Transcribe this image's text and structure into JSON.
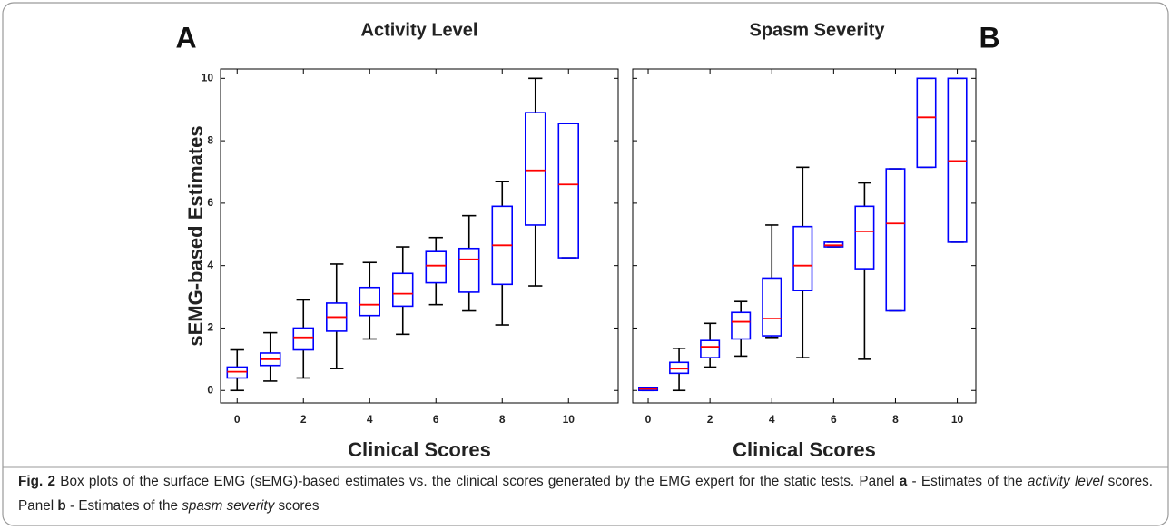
{
  "chart_data": [
    {
      "type": "box",
      "panel_label": "A",
      "title": "Activity Level",
      "ylabel": "sEMG-based Estimates",
      "xlabel": "Clinical Scores",
      "x": [
        0,
        1,
        2,
        3,
        4,
        5,
        6,
        7,
        8,
        9,
        10
      ],
      "boxes": [
        {
          "low": 0,
          "q1": 0.4,
          "median": 0.6,
          "q3": 0.75,
          "high": 1.3
        },
        {
          "low": 0.3,
          "q1": 0.8,
          "median": 1.0,
          "q3": 1.2,
          "high": 1.85
        },
        {
          "low": 0.4,
          "q1": 1.3,
          "median": 1.7,
          "q3": 2.0,
          "high": 2.9
        },
        {
          "low": 0.7,
          "q1": 1.9,
          "median": 2.35,
          "q3": 2.8,
          "high": 4.05
        },
        {
          "low": 1.65,
          "q1": 2.4,
          "median": 2.75,
          "q3": 3.3,
          "high": 4.1
        },
        {
          "low": 1.8,
          "q1": 2.7,
          "median": 3.1,
          "q3": 3.75,
          "high": 4.6
        },
        {
          "low": 2.75,
          "q1": 3.45,
          "median": 4.0,
          "q3": 4.45,
          "high": 4.9
        },
        {
          "low": 2.55,
          "q1": 3.15,
          "median": 4.2,
          "q3": 4.55,
          "high": 5.6
        },
        {
          "low": 2.1,
          "q1": 3.4,
          "median": 4.65,
          "q3": 5.9,
          "high": 6.7
        },
        {
          "low": 3.35,
          "q1": 5.3,
          "median": 7.05,
          "q3": 8.9,
          "high": 10.0
        },
        {
          "low": 4.25,
          "q1": 4.25,
          "median": 6.6,
          "q3": 8.55,
          "high": 8.55
        }
      ],
      "xlim": [
        -0.5,
        11.5
      ],
      "ylim": [
        -0.4,
        10.3
      ],
      "xticks": [
        0,
        2,
        4,
        6,
        8,
        10
      ],
      "yticks": [
        0,
        2,
        4,
        6,
        8,
        10
      ],
      "show_ytick_labels": true,
      "box_color": "#0000ff",
      "median_color": "#ff0000",
      "whisker_color": "#000000"
    },
    {
      "type": "box",
      "panel_label": "B",
      "title": "Spasm Severity",
      "xlabel": "Clinical Scores",
      "x": [
        0,
        1,
        2,
        3,
        4,
        5,
        6,
        7,
        8,
        9,
        10
      ],
      "boxes": [
        {
          "low": 0,
          "q1": 0,
          "median": 0.05,
          "q3": 0.1,
          "high": 0.1
        },
        {
          "low": 0,
          "q1": 0.55,
          "median": 0.7,
          "q3": 0.9,
          "high": 1.35
        },
        {
          "low": 0.75,
          "q1": 1.05,
          "median": 1.4,
          "q3": 1.6,
          "high": 2.15
        },
        {
          "low": 1.1,
          "q1": 1.65,
          "median": 2.2,
          "q3": 2.5,
          "high": 2.85
        },
        {
          "low": 1.7,
          "q1": 1.75,
          "median": 2.3,
          "q3": 3.6,
          "high": 5.3
        },
        {
          "low": 1.05,
          "q1": 3.2,
          "median": 4.0,
          "q3": 5.25,
          "high": 7.15
        },
        {
          "low": 4.6,
          "q1": 4.6,
          "median": 4.65,
          "q3": 4.75,
          "high": 4.75
        },
        {
          "low": 1.0,
          "q1": 3.9,
          "median": 5.1,
          "q3": 5.9,
          "high": 6.65
        },
        {
          "low": 2.55,
          "q1": 2.55,
          "median": 5.35,
          "q3": 7.1,
          "high": 7.1
        },
        {
          "low": 7.15,
          "q1": 7.15,
          "median": 8.75,
          "q3": 10.0,
          "high": 10.0
        },
        {
          "low": 4.75,
          "q1": 4.75,
          "median": 7.35,
          "q3": 10.0,
          "high": 10.0
        }
      ],
      "xlim": [
        -0.5,
        10.6
      ],
      "ylim": [
        -0.4,
        10.3
      ],
      "xticks": [
        0,
        2,
        4,
        6,
        8,
        10
      ],
      "yticks": [
        0,
        2,
        4,
        6,
        8,
        10
      ],
      "show_ytick_labels": false,
      "box_color": "#0000ff",
      "median_color": "#ff0000",
      "whisker_color": "#000000"
    }
  ],
  "caption": [
    {
      "text": "Fig. 2",
      "style": "bold"
    },
    {
      "text": " Box plots of the surface EMG (sEMG)-based estimates vs. the clinical scores generated by the EMG expert for the static tests. Panel ",
      "style": "normal"
    },
    {
      "text": "a",
      "style": "bold"
    },
    {
      "text": " - Estimates of the ",
      "style": "normal"
    },
    {
      "text": "activity level",
      "style": "italic"
    },
    {
      "text": " scores. Panel ",
      "style": "normal"
    },
    {
      "text": "b",
      "style": "bold"
    },
    {
      "text": " - Estimates of the ",
      "style": "normal"
    },
    {
      "text": "spasm severity",
      "style": "italic"
    },
    {
      "text": " scores",
      "style": "normal"
    }
  ]
}
